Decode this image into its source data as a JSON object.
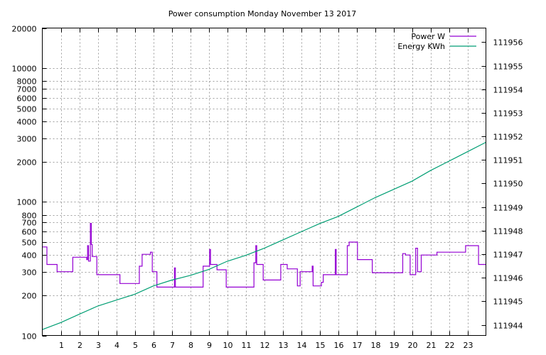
{
  "chart_data": {
    "type": "line",
    "title": "Power consumption Monday November 13 2017",
    "xlim": [
      0,
      24
    ],
    "x_ticks": [
      1,
      2,
      3,
      4,
      5,
      6,
      7,
      8,
      9,
      10,
      11,
      12,
      13,
      14,
      15,
      16,
      17,
      18,
      19,
      20,
      21,
      22,
      23
    ],
    "y_left": {
      "scale": "log",
      "lim": [
        100,
        20000
      ],
      "ticks": [
        100,
        200,
        300,
        400,
        500,
        600,
        700,
        800,
        1000,
        2000,
        3000,
        4000,
        5000,
        6000,
        7000,
        8000,
        10000,
        20000
      ],
      "tick_labels": [
        "100",
        "200",
        "300",
        "400",
        "500",
        "600",
        "700",
        "800",
        "1000",
        "2000",
        "3000",
        "4000",
        "5000",
        "6000",
        "7000",
        "8000",
        "10000",
        "20000"
      ]
    },
    "y_right": {
      "scale": "linear",
      "lim": [
        111943.55,
        111956.6
      ],
      "ticks": [
        111944,
        111945,
        111946,
        111947,
        111948,
        111949,
        111950,
        111951,
        111952,
        111953,
        111954,
        111955,
        111956
      ],
      "tick_labels": [
        "111944",
        "111945",
        "111946",
        "111947",
        "111948",
        "111949",
        "111950",
        "111951",
        "111952",
        "111953",
        "111954",
        "111955",
        "111956"
      ]
    },
    "grid": true,
    "legend_position": "top-right",
    "series": [
      {
        "name": "Power W",
        "axis": "left",
        "color": "#9400d3",
        "x": [
          0,
          0.25,
          0.25,
          0.8,
          0.8,
          1.65,
          1.65,
          2.4,
          2.4,
          2.45,
          2.45,
          2.5,
          2.5,
          2.6,
          2.6,
          2.65,
          2.65,
          2.7,
          2.7,
          2.95,
          2.95,
          3.3,
          3.3,
          4.2,
          4.2,
          5.25,
          5.25,
          5.4,
          5.4,
          5.85,
          5.85,
          5.95,
          5.95,
          6.2,
          6.2,
          7.15,
          7.15,
          7.2,
          7.2,
          8.7,
          8.7,
          9.05,
          9.05,
          9.1,
          9.1,
          9.45,
          9.45,
          9.95,
          9.95,
          11.45,
          11.45,
          11.55,
          11.55,
          11.6,
          11.6,
          11.95,
          11.95,
          12.9,
          12.9,
          13.25,
          13.25,
          13.8,
          13.8,
          13.95,
          13.95,
          14.6,
          14.6,
          14.65,
          14.65,
          15.1,
          15.1,
          15.2,
          15.2,
          15.85,
          15.85,
          15.9,
          15.9,
          16.5,
          16.5,
          16.6,
          16.6,
          17.05,
          17.05,
          17.85,
          17.85,
          19.5,
          19.5,
          19.65,
          19.65,
          19.9,
          19.9,
          20.2,
          20.2,
          20.3,
          20.3,
          20.5,
          20.5,
          21.35,
          21.35,
          22.9,
          22.9,
          23.15,
          23.15,
          23.6,
          23.6,
          24
        ],
        "y": [
          460,
          460,
          340,
          340,
          300,
          300,
          385,
          385,
          370,
          370,
          470,
          470,
          360,
          360,
          690,
          690,
          480,
          480,
          390,
          390,
          285,
          285,
          285,
          285,
          245,
          245,
          330,
          330,
          405,
          405,
          420,
          420,
          300,
          300,
          230,
          230,
          320,
          320,
          230,
          230,
          330,
          330,
          440,
          440,
          340,
          340,
          310,
          310,
          230,
          230,
          350,
          350,
          470,
          470,
          340,
          340,
          260,
          260,
          340,
          340,
          315,
          315,
          235,
          235,
          300,
          300,
          330,
          330,
          235,
          235,
          250,
          250,
          285,
          285,
          440,
          440,
          285,
          285,
          470,
          470,
          500,
          500,
          370,
          370,
          295,
          295,
          410,
          410,
          400,
          400,
          285,
          285,
          450,
          450,
          300,
          300,
          400,
          400,
          420,
          420,
          470,
          470,
          470,
          470,
          340,
          340
        ]
      },
      {
        "name": "Energy KWh",
        "axis": "right",
        "color": "#009e73",
        "x": [
          0,
          1,
          2,
          3,
          4,
          5,
          6,
          7,
          8,
          9,
          10,
          11,
          12,
          13,
          14,
          15,
          16,
          17,
          18,
          19,
          20,
          21,
          22,
          23,
          24
        ],
        "y": [
          111943.8,
          111944.1,
          111944.45,
          111944.8,
          111945.05,
          111945.3,
          111945.65,
          111945.9,
          111946.1,
          111946.35,
          111946.7,
          111946.95,
          111947.25,
          111947.6,
          111947.95,
          111948.3,
          111948.6,
          111949,
          111949.4,
          111949.75,
          111950.1,
          111950.55,
          111950.95,
          111951.35,
          111951.75
        ]
      }
    ]
  }
}
